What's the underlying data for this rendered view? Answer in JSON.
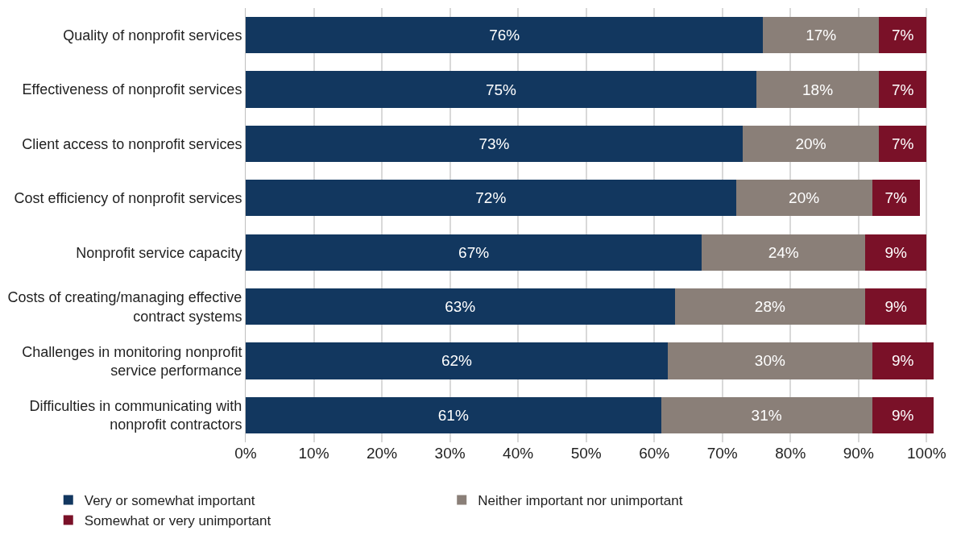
{
  "chart_data": {
    "type": "bar",
    "orientation": "horizontal",
    "stacked": true,
    "categories": [
      "Quality of nonprofit services",
      "Effectiveness of nonprofit services",
      "Client access to nonprofit services",
      "Cost efficiency of nonprofit services",
      "Nonprofit service capacity",
      "Costs of creating/managing effective\ncontract systems",
      "Challenges in monitoring nonprofit\nservice performance",
      "Difficulties in communicating with\nnonprofit contractors"
    ],
    "series": [
      {
        "name": "Very or somewhat important",
        "color": "#12375f",
        "values": [
          76,
          75,
          73,
          72,
          67,
          63,
          62,
          61
        ],
        "value_labels": [
          "76%",
          "75%",
          "73%",
          "72%",
          "67%",
          "63%",
          "62%",
          "61%"
        ]
      },
      {
        "name": "Neither important nor unimportant",
        "color": "#8a7f78",
        "values": [
          17,
          18,
          20,
          20,
          24,
          28,
          30,
          31
        ],
        "value_labels": [
          "17%",
          "18%",
          "20%",
          "20%",
          "24%",
          "28%",
          "30%",
          "31%"
        ]
      },
      {
        "name": "Somewhat or very unimportant",
        "color": "#7a1128",
        "values": [
          7,
          7,
          7,
          7,
          9,
          9,
          9,
          9
        ],
        "value_labels": [
          "7%",
          "7%",
          "7%",
          "7%",
          "9%",
          "9%",
          "9%",
          "9%"
        ]
      }
    ],
    "xlim": [
      0,
      101.5
    ],
    "xticks": [
      {
        "value": 0,
        "label": "0%"
      },
      {
        "value": 10,
        "label": "10%"
      },
      {
        "value": 20,
        "label": "20%"
      },
      {
        "value": 30,
        "label": "30%"
      },
      {
        "value": 40,
        "label": "40%"
      },
      {
        "value": 50,
        "label": "50%"
      },
      {
        "value": 60,
        "label": "60%"
      },
      {
        "value": 70,
        "label": "70%"
      },
      {
        "value": 80,
        "label": "80%"
      },
      {
        "value": 90,
        "label": "90%"
      },
      {
        "value": 100,
        "label": "100%"
      }
    ],
    "grid": "x",
    "legend": "bottom"
  }
}
